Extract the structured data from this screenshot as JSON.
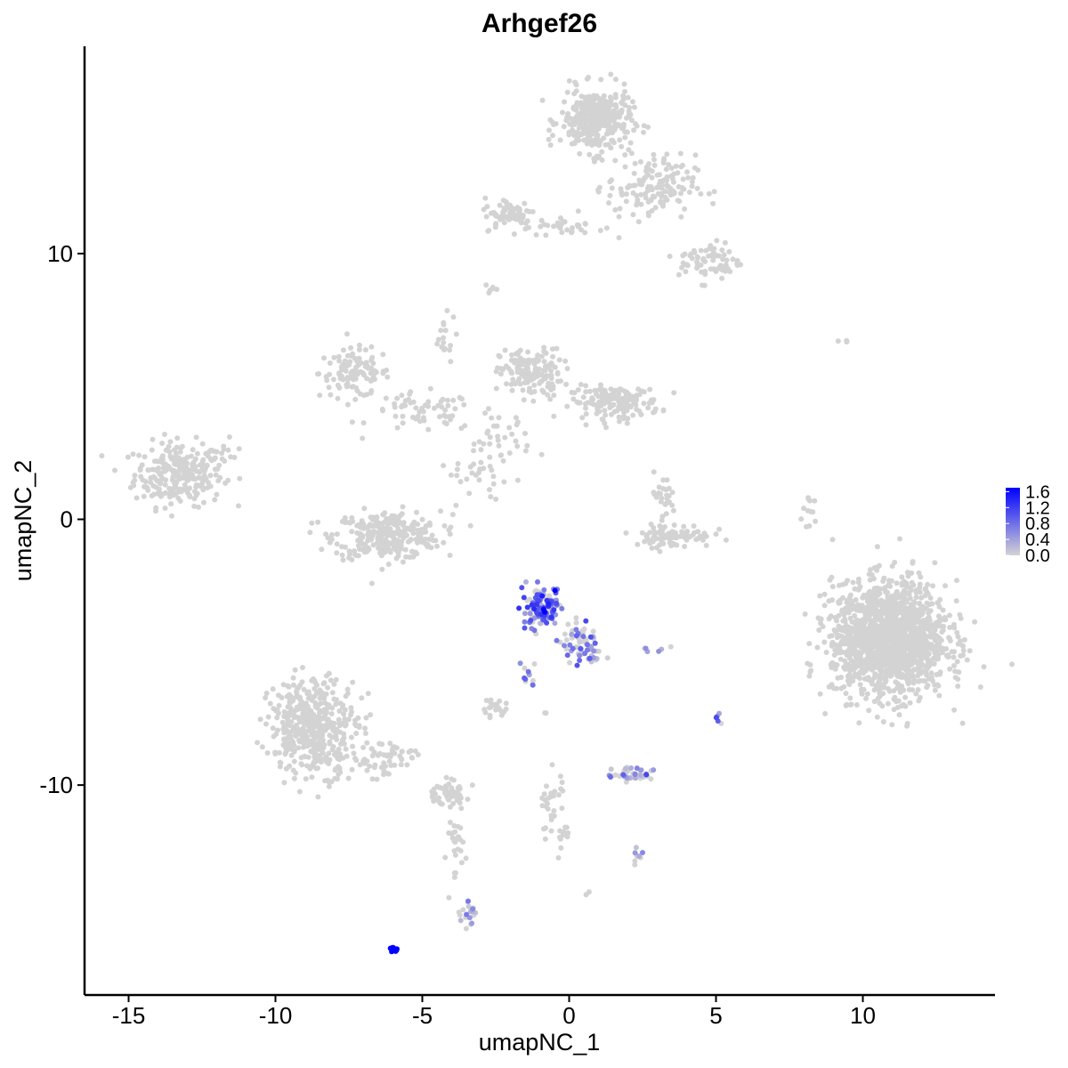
{
  "chart_data": {
    "type": "scatter",
    "title": "Arhgef26",
    "xlabel": "umapNC_1",
    "ylabel": "umapNC_2",
    "xlim": [
      -16.5,
      14.5
    ],
    "ylim": [
      -17.9,
      17.8
    ],
    "x_ticks": [
      -15,
      -10,
      -5,
      0,
      5,
      10
    ],
    "x_tick_labels": [
      "-15",
      "-10",
      "-5",
      "0",
      "5",
      "10"
    ],
    "y_ticks": [
      -10,
      0,
      10
    ],
    "y_tick_labels": [
      "-10",
      "0",
      "10"
    ],
    "grid": false,
    "legend": {
      "position": "right",
      "min": 0.0,
      "max": 1.7,
      "labels": [
        "1.6",
        "1.2",
        "0.8",
        "0.4",
        "0.0"
      ],
      "label_values": [
        1.6,
        1.2,
        0.8,
        0.4,
        0.0
      ]
    },
    "colors": {
      "low": "#d3d3d3",
      "high": "#0000ff"
    },
    "series": [
      {
        "clusters": [
          {
            "cx": -13.3,
            "cy": 1.7,
            "sx": 1.0,
            "sy": 0.8,
            "n": 260,
            "expr": 0.0
          },
          {
            "cx": -11.9,
            "cy": 2.4,
            "sx": 0.5,
            "sy": 0.4,
            "n": 15,
            "expr": 0.0
          },
          {
            "cx": -7.3,
            "cy": 5.5,
            "sx": 0.8,
            "sy": 0.6,
            "n": 110,
            "expr": 0.0
          },
          {
            "cx": -5.0,
            "cy": 4.0,
            "sx": 1.2,
            "sy": 0.5,
            "n": 60,
            "expr": 0.0
          },
          {
            "cx": -6.2,
            "cy": -0.6,
            "sx": 1.2,
            "sy": 0.6,
            "n": 300,
            "expr": 0.0
          },
          {
            "cx": -4.3,
            "cy": 6.8,
            "sx": 0.3,
            "sy": 0.6,
            "n": 18,
            "expr": 0.0
          },
          {
            "cx": -1.3,
            "cy": 5.5,
            "sx": 0.7,
            "sy": 0.6,
            "n": 160,
            "expr": 0.0
          },
          {
            "cx": 1.6,
            "cy": 4.4,
            "sx": 1.0,
            "sy": 0.4,
            "n": 160,
            "expr": 0.0
          },
          {
            "cx": -2.5,
            "cy": 3.0,
            "sx": 0.8,
            "sy": 0.7,
            "n": 40,
            "expr": 0.0
          },
          {
            "cx": -3.1,
            "cy": 1.5,
            "sx": 0.9,
            "sy": 0.6,
            "n": 25,
            "expr": 0.0
          },
          {
            "cx": 0.9,
            "cy": 15.0,
            "sx": 0.8,
            "sy": 0.8,
            "n": 340,
            "expr": 0.0
          },
          {
            "cx": 2.8,
            "cy": 12.5,
            "sx": 1.0,
            "sy": 0.8,
            "n": 150,
            "expr": 0.0
          },
          {
            "cx": 4.8,
            "cy": 9.7,
            "sx": 0.7,
            "sy": 0.5,
            "n": 70,
            "expr": 0.0
          },
          {
            "cx": -2.0,
            "cy": 11.5,
            "sx": 0.6,
            "sy": 0.4,
            "n": 70,
            "expr": 0.0
          },
          {
            "cx": 0.0,
            "cy": 11.0,
            "sx": 0.8,
            "sy": 0.25,
            "n": 30,
            "expr": 0.0
          },
          {
            "cx": -2.7,
            "cy": 8.7,
            "sx": 0.2,
            "sy": 0.15,
            "n": 6,
            "expr": 0.0
          },
          {
            "cx": 3.5,
            "cy": -0.6,
            "sx": 0.9,
            "sy": 0.3,
            "n": 90,
            "expr": 0.0
          },
          {
            "cx": 3.2,
            "cy": 0.8,
            "sx": 0.3,
            "sy": 0.6,
            "n": 25,
            "expr": 0.0
          },
          {
            "cx": 10.9,
            "cy": -4.5,
            "sx": 1.3,
            "sy": 1.4,
            "n": 1600,
            "expr": 0.0
          },
          {
            "cx": 8.1,
            "cy": 0.2,
            "sx": 0.2,
            "sy": 0.5,
            "n": 12,
            "expr": 0.0
          },
          {
            "cx": 9.5,
            "cy": 6.7,
            "sx": 0.2,
            "sy": 0.1,
            "n": 3,
            "expr": 0.0
          },
          {
            "cx": -8.7,
            "cy": -7.8,
            "sx": 1.0,
            "sy": 1.2,
            "n": 450,
            "expr": 0.0
          },
          {
            "cx": -6.3,
            "cy": -9.0,
            "sx": 0.7,
            "sy": 0.5,
            "n": 60,
            "expr": 0.0
          },
          {
            "cx": -4.2,
            "cy": -10.3,
            "sx": 0.5,
            "sy": 0.3,
            "n": 50,
            "expr": 0.0
          },
          {
            "cx": -3.9,
            "cy": -12.5,
            "sx": 0.25,
            "sy": 1.3,
            "n": 35,
            "expr": 0.0
          },
          {
            "cx": -3.4,
            "cy": -14.8,
            "sx": 0.2,
            "sy": 0.4,
            "n": 18,
            "expr": 0.15
          },
          {
            "cx": -2.6,
            "cy": -7.1,
            "sx": 0.3,
            "sy": 0.2,
            "n": 20,
            "expr": 0.0
          },
          {
            "cx": -0.6,
            "cy": -10.8,
            "sx": 0.3,
            "sy": 1.0,
            "n": 30,
            "expr": 0.0
          },
          {
            "cx": -0.2,
            "cy": -11.8,
            "sx": 0.25,
            "sy": 0.4,
            "n": 12,
            "expr": 0.0
          },
          {
            "cx": 2.1,
            "cy": -9.6,
            "sx": 0.5,
            "sy": 0.2,
            "n": 40,
            "expr": 0.25
          },
          {
            "cx": 2.3,
            "cy": -12.6,
            "sx": 0.2,
            "sy": 0.2,
            "n": 8,
            "expr": 0.2
          },
          {
            "cx": 0.7,
            "cy": -14.1,
            "sx": 0.1,
            "sy": 0.1,
            "n": 2,
            "expr": 0.0
          },
          {
            "cx": 2.9,
            "cy": -4.9,
            "sx": 0.3,
            "sy": 0.1,
            "n": 6,
            "expr": 0.2
          },
          {
            "cx": -0.9,
            "cy": -3.3,
            "sx": 0.5,
            "sy": 0.5,
            "n": 120,
            "expr": 0.9
          },
          {
            "cx": 0.3,
            "cy": -4.6,
            "sx": 0.45,
            "sy": 0.45,
            "n": 60,
            "expr": 0.6
          },
          {
            "cx": -1.4,
            "cy": -5.8,
            "sx": 0.2,
            "sy": 0.4,
            "n": 12,
            "expr": 0.5
          },
          {
            "cx": 0.9,
            "cy": -5.2,
            "sx": 0.2,
            "sy": 0.3,
            "n": 12,
            "expr": 0.5
          },
          {
            "cx": 5.1,
            "cy": -7.4,
            "sx": 0.08,
            "sy": 0.25,
            "n": 5,
            "expr": 0.45
          },
          {
            "cx": -0.8,
            "cy": -7.3,
            "sx": 0.05,
            "sy": 0.05,
            "n": 2,
            "expr": 0.4
          },
          {
            "cx": -6.0,
            "cy": -16.2,
            "sx": 0.12,
            "sy": 0.06,
            "n": 10,
            "expr": 1.7
          },
          {
            "cx": -2.4,
            "cy": 3.8,
            "sx": 0.05,
            "sy": 0.05,
            "n": 1,
            "expr": 0.4
          }
        ]
      }
    ]
  }
}
